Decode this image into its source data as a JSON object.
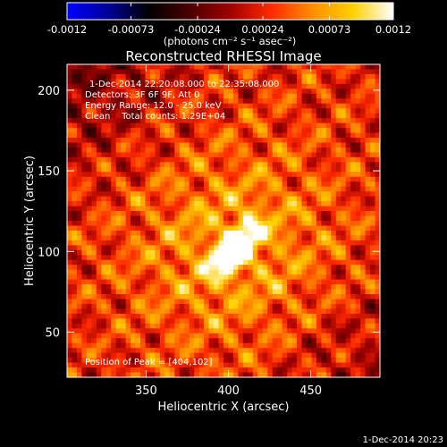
{
  "chart_data": {
    "type": "heatmap",
    "title": "Reconstructed RHESSI Image",
    "xlabel": "Heliocentric X (arcsec)",
    "ylabel": "Heliocentric Y (arcsec)",
    "xlim": [
      302,
      492
    ],
    "ylim": [
      22,
      216
    ],
    "x_ticks": [
      350,
      400,
      450
    ],
    "y_ticks": [
      50,
      100,
      150,
      200
    ],
    "colorbar": {
      "range": [
        -0.0012,
        0.0012
      ],
      "tick_values": [
        -0.0012,
        -0.00073,
        -0.00024,
        0.00024,
        0.00073,
        0.0012
      ],
      "tick_labels": [
        "-0.0012",
        "-0.00073",
        "-0.00024",
        "0.00024",
        "0.00073",
        "0.0012"
      ],
      "units": "(photons cm⁻² s⁻¹ asec⁻²)",
      "stops": [
        "#0000ff",
        "#00009a",
        "#000000",
        "#4a0000",
        "#a00000",
        "#ff2a00",
        "#ff8c00",
        "#ffd000",
        "#ffffff"
      ]
    },
    "annotations": {
      "time_range": "1-Dec-2014 22:20:08.000 to 22:35:08.000",
      "detectors": "Detectors: 3F 6F 9F, Att 0",
      "energy": "Energy Range: 12.0 - 25.0 keV",
      "method_counts": "Clean    Total counts: 1.29E+04",
      "peak": "Position of Peak = [404,102]"
    },
    "peak": {
      "x": 404,
      "y": 102,
      "value": 0.0012
    }
  },
  "footer_timestamp": "1-Dec-2014 20:23"
}
